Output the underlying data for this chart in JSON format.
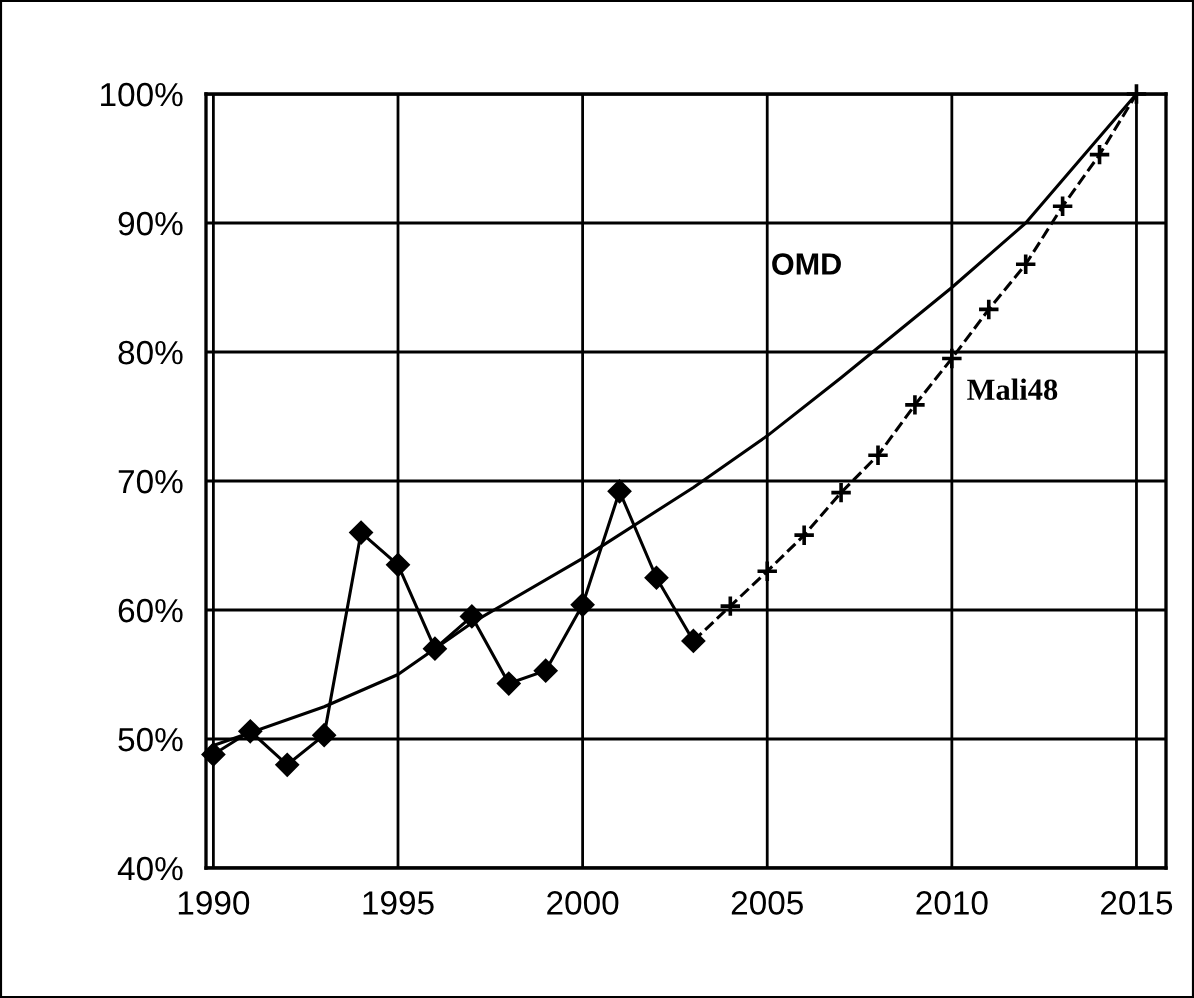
{
  "chart_data": {
    "type": "line",
    "xlim": [
      1989.8,
      2015.8
    ],
    "xticks": [
      1990,
      1995,
      2000,
      2005,
      2010,
      2015
    ],
    "ylim": [
      40,
      100
    ],
    "yticks": [
      {
        "value": 40,
        "label": "40%"
      },
      {
        "value": 50,
        "label": "50%"
      },
      {
        "value": 60,
        "label": "60%"
      },
      {
        "value": 70,
        "label": "70%"
      },
      {
        "value": 80,
        "label": "80%"
      },
      {
        "value": 90,
        "label": "90%"
      },
      {
        "value": 100,
        "label": "100%"
      }
    ],
    "grid": true,
    "legend": false,
    "series": [
      {
        "name": "OMD",
        "color": "#000000",
        "marker": "none",
        "line_style": "solid",
        "x": [
          1990,
          1993,
          1995,
          1997,
          2000,
          2003,
          2005,
          2007,
          2010,
          2012,
          2015
        ],
        "values": [
          49.5,
          52.5,
          55,
          59,
          64,
          69.5,
          73.5,
          78,
          85,
          90,
          100
        ]
      },
      {
        "color": "#000000",
        "marker": "diamond",
        "line_style": "solid",
        "x": [
          1990,
          1991,
          1992,
          1993,
          1994,
          1995,
          1996,
          1997,
          1998,
          1999,
          2000,
          2001,
          2002,
          2003
        ],
        "values": [
          48.8,
          50.6,
          48,
          50.3,
          66,
          63.5,
          57,
          59.5,
          54.3,
          55.3,
          60.4,
          69.2,
          62.5,
          57.6
        ]
      },
      {
        "name": "Mali48",
        "color": "#000000",
        "marker": "cross",
        "line_style": "dashed",
        "x": [
          2003,
          2004,
          2005,
          2006,
          2007,
          2008,
          2009,
          2010,
          2011,
          2012,
          2013,
          2014,
          2015
        ],
        "values": [
          57.6,
          60.3,
          63,
          65.8,
          69.1,
          72,
          75.9,
          79.5,
          83.3,
          86.8,
          91.3,
          95.3,
          100
        ]
      }
    ]
  }
}
